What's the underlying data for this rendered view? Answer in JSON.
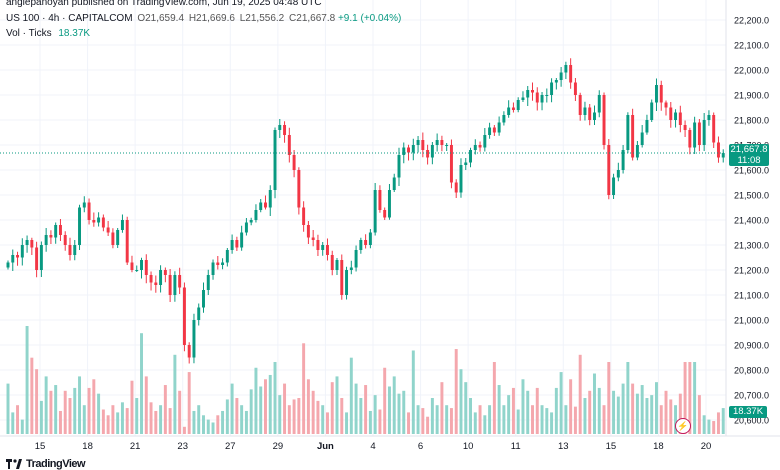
{
  "header": {
    "published": "anglepanoyan published on TradingView.com, Jun 19, 2025 04:48 UTC"
  },
  "legend": {
    "symbol": "US 100 · 4h · CAPITALCOM",
    "open": "O21,659.4",
    "high": "H21,669.6",
    "low": "L21,556.2",
    "close": "C21,667.8",
    "change": "+9.1 (+0.04%)",
    "volume_label": "Vol · Ticks",
    "volume_value": "18.37K"
  },
  "price_tag": {
    "price": "21,667.8",
    "countdown": "11:08"
  },
  "volume_tag": "18.37K",
  "footer": {
    "brand": "TradingView"
  },
  "colors": {
    "up": "#089981",
    "down": "#f23645",
    "vol_up": "#90d4cb",
    "vol_down": "#f4a7ad",
    "grid": "#f0f3fa"
  },
  "chart_data": {
    "type": "candlestick",
    "x_ticks": [
      "15",
      "18",
      "21",
      "23",
      "27",
      "29",
      "Jun",
      "4",
      "6",
      "10",
      "11",
      "13",
      "15",
      "18",
      "20"
    ],
    "y_ticks": [
      "22,200.0",
      "22,100.0",
      "22,000.0",
      "21,900.0",
      "21,800.0",
      "21,700.0",
      "21,600.0",
      "21,500.0",
      "21,400.0",
      "21,300.0",
      "21,200.0",
      "21,100.0",
      "21,000.0",
      "20,900.0",
      "20,800.0",
      "20,700.0",
      "20,600.0"
    ],
    "ylim": [
      20600,
      22200
    ],
    "last_price": 21667.8,
    "close": [
      21230,
      21260,
      21250,
      21300,
      21320,
      21290,
      21200,
      21300,
      21340,
      21330,
      21380,
      21340,
      21300,
      21260,
      21300,
      21450,
      21470,
      21400,
      21390,
      21410,
      21370,
      21350,
      21300,
      21360,
      21400,
      21230,
      21200,
      21200,
      21240,
      21180,
      21150,
      21140,
      21200,
      21180,
      21100,
      21180,
      21130,
      20900,
      20850,
      21000,
      21050,
      21120,
      21180,
      21230,
      21220,
      21230,
      21280,
      21320,
      21290,
      21350,
      21390,
      21400,
      21440,
      21470,
      21450,
      21520,
      21760,
      21780,
      21740,
      21660,
      21600,
      21450,
      21380,
      21330,
      21320,
      21280,
      21300,
      21260,
      21200,
      21240,
      21100,
      21200,
      21210,
      21280,
      21320,
      21300,
      21350,
      21520,
      21440,
      21410,
      21520,
      21570,
      21660,
      21690,
      21670,
      21700,
      21720,
      21680,
      21650,
      21700,
      21720,
      21700,
      21700,
      21550,
      21510,
      21620,
      21630,
      21680,
      21700,
      21690,
      21740,
      21770,
      21750,
      21790,
      21820,
      21850,
      21840,
      21880,
      21890,
      21920,
      21910,
      21870,
      21900,
      21900,
      21950,
      21960,
      21990,
      22020,
      21950,
      21900,
      21820,
      21850,
      21800,
      21830,
      21900,
      21700,
      21500,
      21570,
      21600,
      21680,
      21820,
      21650,
      21700,
      21750,
      21800,
      21870,
      21940,
      21870,
      21850,
      21800,
      21830,
      21780,
      21760,
      21690,
      21790,
      21700,
      21800,
      21820,
      21710,
      21650,
      21667.8
    ],
    "volume": [
      3.5,
      1.5,
      2.0,
      1.0,
      7.5,
      5.3,
      4.5,
      2.3,
      4.0,
      3.0,
      3.4,
      1.6,
      3.0,
      2.5,
      3.2,
      4.0,
      2.0,
      3.2,
      3.8,
      2.8,
      1.7,
      1.3,
      2.0,
      1.5,
      2.2,
      1.8,
      3.7,
      2.5,
      7.0,
      4.0,
      2.2,
      1.6,
      2.0,
      3.4,
      1.8,
      5.5,
      3.0,
      0.5,
      4.3,
      1.6,
      2.0,
      1.3,
      1.0,
      0.8,
      1.3,
      1.6,
      2.4,
      3.5,
      2.5,
      2.0,
      1.6,
      3.1,
      4.6,
      3.3,
      3.8,
      4.1,
      5.0,
      2.7,
      3.5,
      2.0,
      2.4,
      2.5,
      6.3,
      3.8,
      3.0,
      2.3,
      2.0,
      1.5,
      3.6,
      4.0,
      2.5,
      1.5,
      5.3,
      3.5,
      2.5,
      3.4,
      1.6,
      2.7,
      1.7,
      4.6,
      3.3,
      4.0,
      2.8,
      3.0,
      1.5,
      5.8,
      2.0,
      1.8,
      1.2,
      2.5,
      2.0,
      3.6,
      2.0,
      1.8,
      5.9,
      4.5,
      3.6,
      2.5,
      1.5,
      2.0,
      1.3,
      2.0,
      5.0,
      3.4,
      2.0,
      2.7,
      3.2,
      1.7,
      3.8,
      3.0,
      2.0,
      3.2,
      2.0,
      1.8,
      1.5,
      3.2,
      4.3,
      2.0,
      3.8,
      1.9,
      5.5,
      2.5,
      3.0,
      4.2,
      3.2,
      2.0,
      5.0,
      3.0,
      2.6,
      3.5,
      5.0,
      3.5,
      2.8,
      3.4,
      2.5,
      2.7,
      3.6,
      2.0,
      3.0,
      2.4,
      2.0,
      2.8,
      5.0,
      5.0,
      5.0,
      2.7,
      1.3,
      1.0,
      0.9,
      1.5,
      1.8
    ]
  }
}
